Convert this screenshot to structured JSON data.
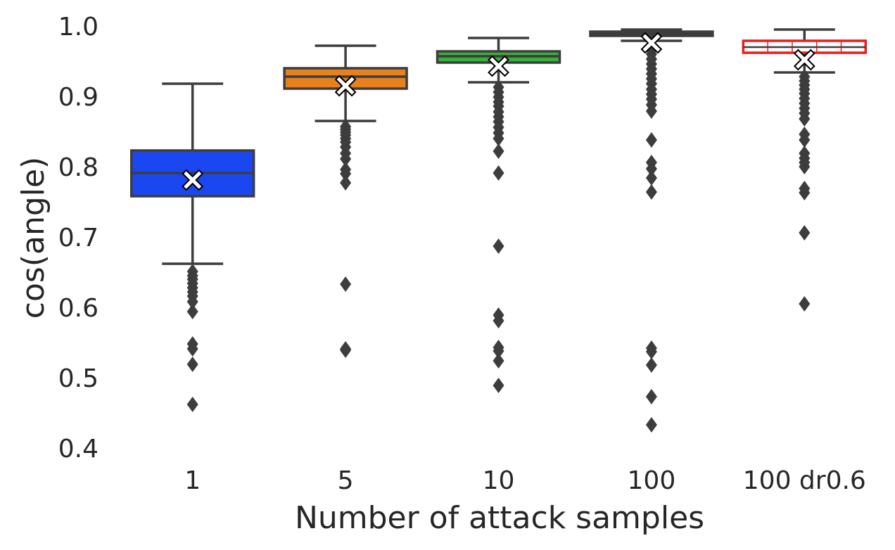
{
  "chart_data": {
    "type": "box",
    "title": "",
    "xlabel": "Number of attack samples",
    "ylabel": "cos(angle)",
    "ylim": [
      0.38,
      1.0
    ],
    "yticks": [
      0.4,
      0.5,
      0.6,
      0.7,
      0.8,
      0.9,
      1.0
    ],
    "grid": false,
    "legend": "none",
    "mean_marker": "white X",
    "categories": [
      "1",
      "5",
      "10",
      "100",
      "100 dr0.6"
    ],
    "boxes": [
      {
        "category": "1",
        "color": "#1a47f0",
        "whisker_low": 0.662,
        "q1": 0.758,
        "median": 0.791,
        "q3": 0.823,
        "whisker_high": 0.918,
        "mean": 0.781,
        "outliers": [
          0.651,
          0.645,
          0.64,
          0.634,
          0.628,
          0.622,
          0.616,
          0.608,
          0.594,
          0.548,
          0.541,
          0.519,
          0.462
        ]
      },
      {
        "category": "5",
        "color": "#e8801c",
        "whisker_low": 0.865,
        "q1": 0.911,
        "median": 0.928,
        "q3": 0.94,
        "whisker_high": 0.972,
        "mean": 0.915,
        "outliers": [
          0.857,
          0.853,
          0.849,
          0.845,
          0.84,
          0.835,
          0.828,
          0.819,
          0.811,
          0.796,
          0.79,
          0.777,
          0.633,
          0.541,
          0.539
        ]
      },
      {
        "category": "10",
        "color": "#36b13a",
        "whisker_low": 0.92,
        "q1": 0.948,
        "median": 0.957,
        "q3": 0.964,
        "whisker_high": 0.983,
        "mean": 0.943,
        "outliers": [
          0.913,
          0.906,
          0.899,
          0.892,
          0.886,
          0.878,
          0.871,
          0.864,
          0.856,
          0.848,
          0.84,
          0.822,
          0.791,
          0.687,
          0.589,
          0.581,
          0.543,
          0.538,
          0.524,
          0.489
        ]
      },
      {
        "category": "100",
        "color": "#3d3d3d",
        "whisker_low": 0.979,
        "q1": 0.986,
        "median": 0.99,
        "q3": 0.992,
        "whisker_high": 0.995,
        "mean": 0.976,
        "outliers": [
          0.973,
          0.966,
          0.96,
          0.953,
          0.946,
          0.939,
          0.932,
          0.925,
          0.918,
          0.91,
          0.903,
          0.896,
          0.888,
          0.879,
          0.838,
          0.806,
          0.797,
          0.784,
          0.764,
          0.542,
          0.537,
          0.518,
          0.473,
          0.433
        ]
      },
      {
        "category": "100 dr0.6",
        "color": "#ee1c1c",
        "whisker_low": 0.934,
        "q1": 0.962,
        "median": 0.97,
        "q3": 0.979,
        "whisker_high": 0.995,
        "mean": 0.952,
        "outliers": [
          0.928,
          0.922,
          0.916,
          0.91,
          0.904,
          0.897,
          0.89,
          0.883,
          0.876,
          0.868,
          0.846,
          0.838,
          0.819,
          0.812,
          0.806,
          0.8,
          0.769,
          0.763,
          0.706,
          0.605
        ]
      }
    ]
  }
}
